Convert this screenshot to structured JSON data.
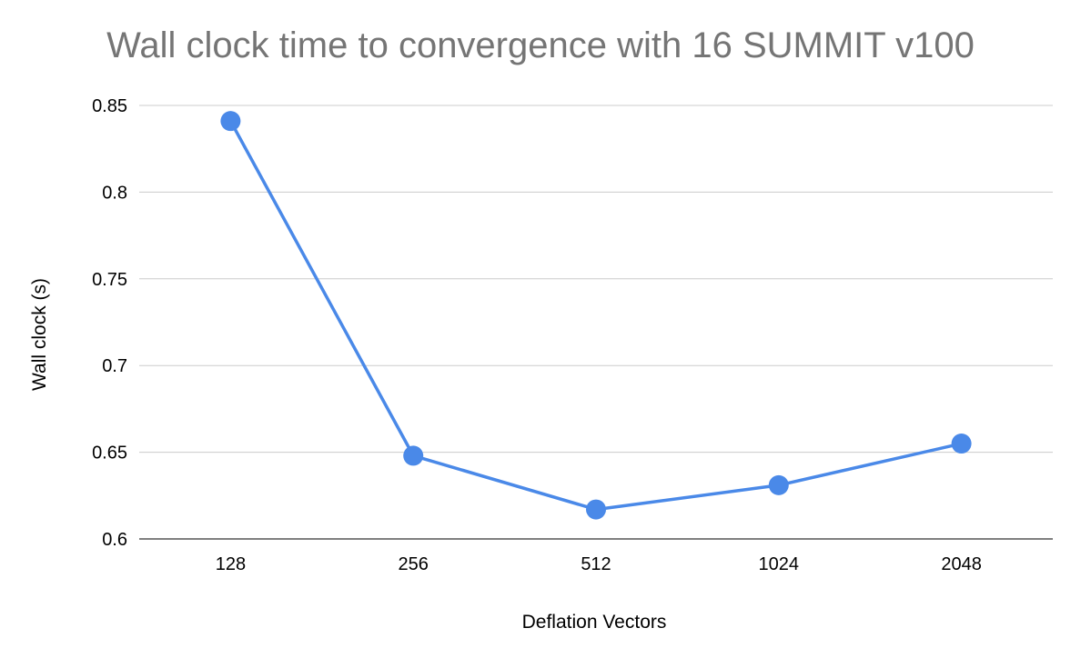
{
  "chart_data": {
    "type": "line",
    "title": "Wall clock time to convergence with 16 SUMMIT v100",
    "xlabel": "Deflation Vectors",
    "ylabel": "Wall clock (s)",
    "categories": [
      "128",
      "256",
      "512",
      "1024",
      "2048"
    ],
    "series": [
      {
        "values": [
          0.841,
          0.648,
          0.617,
          0.631,
          0.655
        ],
        "color": "#4a89e8"
      }
    ],
    "ylim": [
      0.6,
      0.85
    ],
    "yticks": [
      "0.6",
      "0.65",
      "0.7",
      "0.75",
      "0.8",
      "0.85"
    ],
    "grid": true,
    "legend": "none"
  }
}
